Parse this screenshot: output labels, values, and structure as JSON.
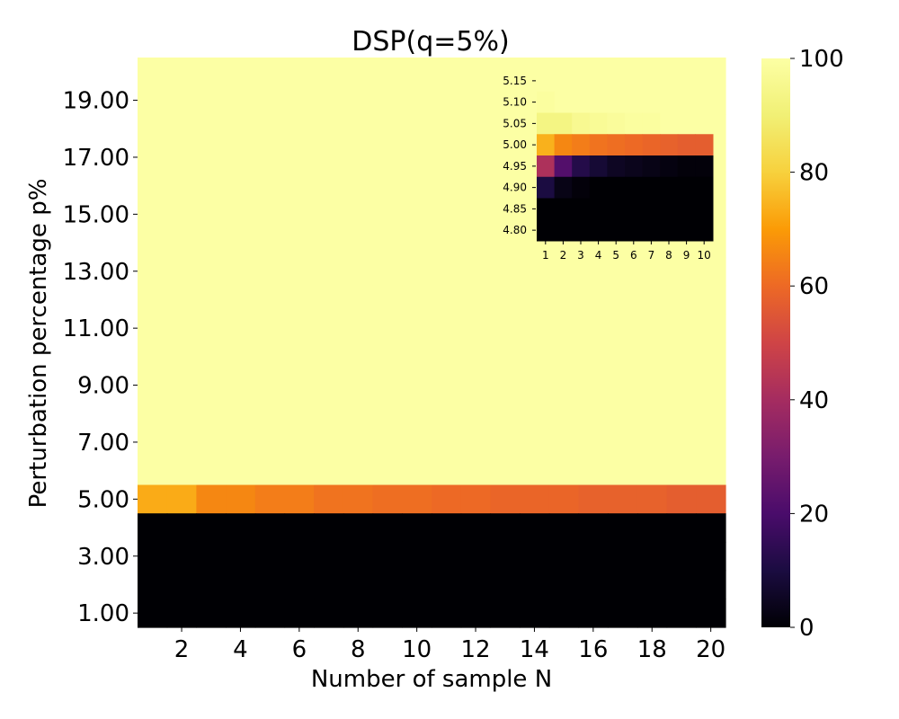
{
  "chart_data": {
    "type": "heatmap",
    "title": "DSP(q=5%)",
    "xlabel": "Number of sample N",
    "ylabel": "Perturbation percentage p%",
    "x_ticks": [
      "2",
      "4",
      "6",
      "8",
      "10",
      "12",
      "14",
      "16",
      "18",
      "20"
    ],
    "y_ticks": [
      "19.00",
      "17.00",
      "15.00",
      "13.00",
      "11.00",
      "9.00",
      "7.00",
      "5.00",
      "3.00",
      "1.00"
    ],
    "colormap": "inferno",
    "colorbar": {
      "min": 0,
      "max": 100,
      "ticks": [
        "100",
        "80",
        "60",
        "40",
        "20",
        "0"
      ]
    },
    "main": {
      "x": [
        1,
        2,
        3,
        4,
        5,
        6,
        7,
        8,
        9,
        10,
        11,
        12,
        13,
        14,
        15,
        16,
        17,
        18,
        19,
        20
      ],
      "y_rows_top_to_bottom": [
        20,
        19,
        18,
        17,
        16,
        15,
        14,
        13,
        12,
        11,
        10,
        9,
        8,
        7,
        6,
        5,
        4,
        3,
        2,
        1
      ],
      "row_5_values": [
        73,
        73,
        66,
        66,
        64,
        64,
        62,
        62,
        61,
        61,
        60,
        60,
        59,
        59,
        59,
        58,
        58,
        58,
        57,
        57
      ],
      "above_5_value": 100,
      "below_5_value": 0
    },
    "inset": {
      "x_ticks": [
        "1",
        "2",
        "3",
        "4",
        "5",
        "6",
        "7",
        "8",
        "9",
        "10"
      ],
      "y_ticks": [
        "5.15",
        "5.10",
        "5.05",
        "5.00",
        "4.95",
        "4.90",
        "4.85",
        "4.80"
      ],
      "values": [
        [
          100,
          100,
          100,
          100,
          100,
          100,
          100,
          100,
          100,
          100
        ],
        [
          99,
          100,
          100,
          100,
          100,
          100,
          100,
          100,
          100,
          100
        ],
        [
          93,
          93,
          96,
          97,
          98,
          99,
          99,
          100,
          100,
          100
        ],
        [
          74,
          66,
          64,
          62,
          61,
          60,
          59,
          58,
          57,
          57
        ],
        [
          42,
          22,
          12,
          8,
          5,
          4,
          3,
          2,
          1,
          1
        ],
        [
          10,
          3,
          1,
          0,
          0,
          0,
          0,
          0,
          0,
          0
        ],
        [
          0,
          0,
          0,
          0,
          0,
          0,
          0,
          0,
          0,
          0
        ],
        [
          0,
          0,
          0,
          0,
          0,
          0,
          0,
          0,
          0,
          0
        ]
      ]
    }
  }
}
